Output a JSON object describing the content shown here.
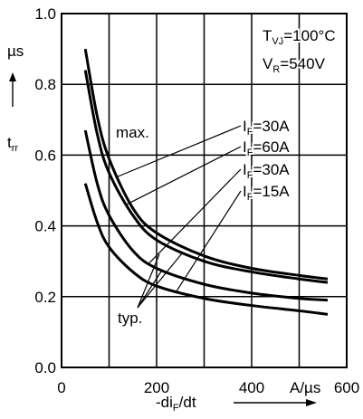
{
  "chart_data": {
    "type": "line",
    "xlim": [
      0,
      600
    ],
    "ylim": [
      0.0,
      1.0
    ],
    "grid": true,
    "x_ticks": [
      "0",
      "200",
      "400",
      "600"
    ],
    "y_ticks": [
      "0.0",
      "0.2",
      "0.4",
      "0.6",
      "0.8",
      "1.0"
    ],
    "x_unit": "A/µs",
    "y_unit": "µs",
    "xlabel_parts": {
      "main": "-di",
      "sub": "F",
      "suffix": "/dt"
    },
    "ylabel_parts": {
      "main": "t",
      "sub": "rr"
    },
    "conditions": [
      {
        "main": "T",
        "sub": "VJ",
        "suffix": "=100°C"
      },
      {
        "main": "V",
        "sub": "R",
        "suffix": "=540V"
      }
    ],
    "group_labels": {
      "max": "max.",
      "typ": "typ."
    },
    "series": [
      {
        "name": "I_F=30A max.",
        "label": {
          "main": "I",
          "sub": "F",
          "suffix": "=30A"
        },
        "x": [
          50,
          75,
          100,
          150,
          200,
          300,
          400,
          500,
          560
        ],
        "y": [
          0.9,
          0.71,
          0.59,
          0.45,
          0.38,
          0.315,
          0.28,
          0.26,
          0.25
        ]
      },
      {
        "name": "I_F=60A",
        "label": {
          "main": "I",
          "sub": "F",
          "suffix": "=60A"
        },
        "x": [
          50,
          75,
          100,
          150,
          200,
          300,
          400,
          500,
          560
        ],
        "y": [
          0.84,
          0.66,
          0.55,
          0.43,
          0.36,
          0.3,
          0.27,
          0.25,
          0.24
        ]
      },
      {
        "name": "I_F=30A typ.",
        "label": {
          "main": "I",
          "sub": "F",
          "suffix": "=30A"
        },
        "x": [
          50,
          75,
          100,
          150,
          200,
          300,
          400,
          500,
          560
        ],
        "y": [
          0.67,
          0.52,
          0.43,
          0.33,
          0.28,
          0.235,
          0.21,
          0.195,
          0.19
        ]
      },
      {
        "name": "I_F=15A",
        "label": {
          "main": "I",
          "sub": "F",
          "suffix": "=15A"
        },
        "x": [
          50,
          75,
          100,
          150,
          200,
          300,
          400,
          500,
          560
        ],
        "y": [
          0.52,
          0.41,
          0.34,
          0.27,
          0.23,
          0.195,
          0.175,
          0.16,
          0.15
        ]
      }
    ]
  }
}
